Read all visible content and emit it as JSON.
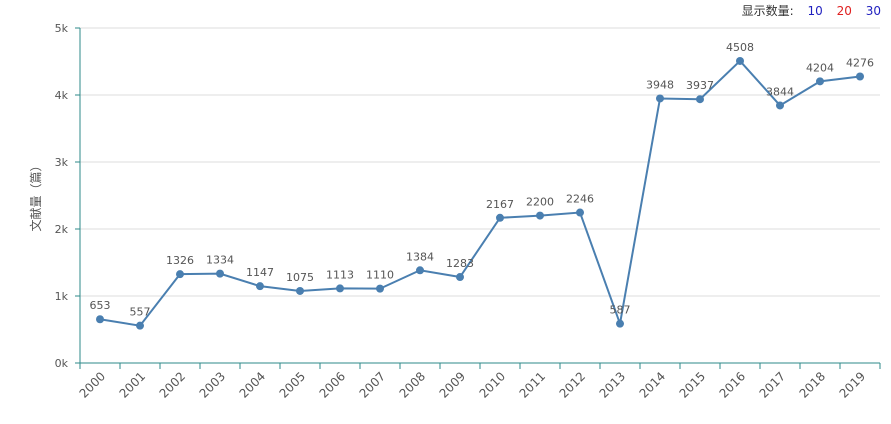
{
  "display_count": {
    "label": "显示数量:",
    "options": [
      {
        "text": "10",
        "color": "#1f1fbf"
      },
      {
        "text": "20",
        "color": "#e02020"
      },
      {
        "text": "30",
        "color": "#1f1fbf"
      }
    ]
  },
  "colors": {
    "line": "#4a7fb0",
    "axis": "#2d8a8a",
    "grid": "#dddddd",
    "text": "#555555"
  },
  "chart_data": {
    "type": "line",
    "title": "",
    "xlabel": "",
    "ylabel": "文献量（篇）",
    "ylim": [
      0,
      5000
    ],
    "yticks": [
      "0k",
      "1k",
      "2k",
      "3k",
      "4k",
      "5k"
    ],
    "grid": true,
    "categories": [
      "2000",
      "2001",
      "2002",
      "2003",
      "2004",
      "2005",
      "2006",
      "2007",
      "2008",
      "2009",
      "2010",
      "2011",
      "2012",
      "2013",
      "2014",
      "2015",
      "2016",
      "2017",
      "2018",
      "2019"
    ],
    "series": [
      {
        "values": [
          653,
          557,
          1326,
          1334,
          1147,
          1075,
          1113,
          1110,
          1384,
          1283,
          2167,
          2200,
          2246,
          587,
          3948,
          3937,
          4508,
          3844,
          4204,
          4276
        ]
      }
    ]
  }
}
